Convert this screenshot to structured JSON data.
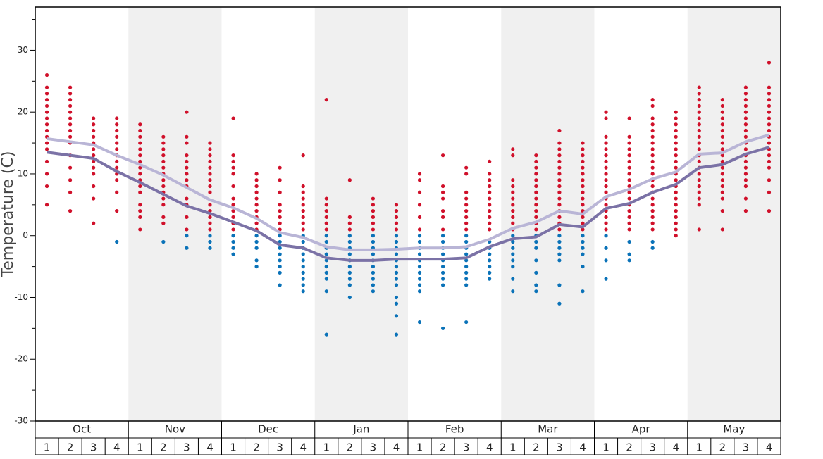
{
  "chart_data": {
    "type": "dot-strip",
    "y_label": "Temperature (C)",
    "ylim": [
      -30,
      37
    ],
    "yticks": [
      -30,
      -20,
      -10,
      0,
      10,
      20,
      30
    ],
    "yminorticks": [
      -25,
      -15,
      -5,
      5,
      15,
      25,
      35
    ],
    "months": [
      "Oct",
      "Nov",
      "Dec",
      "Jan",
      "Feb",
      "Mar",
      "Apr",
      "May"
    ],
    "shade_color": "#f0f0f0",
    "categories": [
      "1",
      "2",
      "3",
      "4",
      "1",
      "2",
      "3",
      "4",
      "1",
      "2",
      "3",
      "4",
      "1",
      "2",
      "3",
      "4",
      "1",
      "2",
      "3",
      "4",
      "1",
      "2",
      "3",
      "4",
      "1",
      "2",
      "3",
      "4",
      "1",
      "2",
      "3",
      "4"
    ],
    "series": [
      {
        "color": "#d0102a",
        "values": [
          [
            26,
            24,
            23,
            22,
            21,
            20,
            19,
            18,
            17,
            16,
            15,
            14,
            12,
            10,
            8,
            5
          ],
          [
            24,
            23,
            22,
            21,
            20,
            19,
            18,
            17,
            16,
            15,
            13,
            11,
            9,
            7,
            4
          ],
          [
            19,
            18,
            17,
            16,
            15,
            14,
            13,
            12,
            11,
            10,
            8,
            6,
            2
          ],
          [
            19,
            18,
            17,
            16,
            15,
            14,
            13,
            12,
            11,
            10,
            9,
            7,
            4
          ],
          [
            18,
            17,
            16,
            15,
            14,
            13,
            12,
            11,
            10,
            9,
            8,
            7,
            5,
            4,
            3,
            1
          ],
          [
            16,
            15,
            14,
            13,
            12,
            11,
            10,
            9,
            8,
            7,
            6,
            5,
            3,
            2
          ],
          [
            20,
            16,
            15,
            13,
            12,
            11,
            10,
            9,
            8,
            6,
            5,
            3,
            1
          ],
          [
            15,
            14,
            13,
            12,
            11,
            10,
            9,
            8,
            7,
            5,
            4,
            3,
            2,
            1
          ],
          [
            19,
            13,
            12,
            11,
            10,
            8,
            6,
            5,
            4,
            3,
            2,
            1
          ],
          [
            10,
            9,
            8,
            7,
            6,
            5,
            4,
            3,
            2,
            1
          ],
          [
            11,
            9,
            7,
            5,
            4,
            3,
            2,
            1
          ],
          [
            13,
            8,
            7,
            6,
            5,
            4,
            3,
            2,
            1
          ],
          [
            22,
            6,
            5,
            4,
            3,
            2,
            1
          ],
          [
            9,
            3,
            2,
            1
          ],
          [
            6,
            5,
            4,
            3,
            2,
            1
          ],
          [
            5,
            4,
            3,
            2,
            1
          ],
          [
            10,
            9,
            7,
            5,
            3,
            1
          ],
          [
            13,
            8,
            7,
            6,
            4,
            3,
            1
          ],
          [
            11,
            10,
            7,
            6,
            5,
            4,
            3,
            2,
            1
          ],
          [
            12,
            10,
            9,
            8,
            7,
            6,
            5,
            4,
            3,
            2,
            1
          ],
          [
            14,
            13,
            9,
            8,
            7,
            6,
            5,
            4,
            3,
            2,
            1
          ],
          [
            13,
            12,
            11,
            10,
            9,
            8,
            7,
            6,
            5,
            4,
            3,
            2,
            1
          ],
          [
            17,
            15,
            14,
            13,
            12,
            11,
            10,
            9,
            8,
            7,
            6,
            5,
            4,
            3,
            2,
            1
          ],
          [
            15,
            14,
            13,
            12,
            11,
            10,
            9,
            8,
            7,
            6,
            5,
            4,
            3,
            2,
            1
          ],
          [
            20,
            19,
            16,
            15,
            14,
            13,
            12,
            11,
            10,
            9,
            8,
            7,
            6,
            5,
            4,
            3,
            2,
            1
          ],
          [
            19,
            16,
            15,
            14,
            13,
            12,
            11,
            10,
            9,
            8,
            7,
            6,
            5,
            4,
            3,
            2,
            1
          ],
          [
            22,
            21,
            19,
            18,
            17,
            16,
            15,
            14,
            13,
            12,
            11,
            10,
            9,
            8,
            7,
            6,
            5,
            4,
            3,
            2,
            1
          ],
          [
            20,
            19,
            18,
            17,
            16,
            15,
            14,
            13,
            12,
            11,
            10,
            9,
            8,
            7,
            6,
            5,
            4,
            3,
            2,
            1,
            0
          ],
          [
            24,
            23,
            22,
            21,
            20,
            19,
            18,
            17,
            16,
            15,
            14,
            13,
            12,
            11,
            10,
            9,
            8,
            7,
            6,
            5,
            1
          ],
          [
            22,
            21,
            20,
            19,
            18,
            17,
            16,
            15,
            14,
            13,
            12,
            11,
            10,
            9,
            8,
            7,
            6,
            4,
            1
          ],
          [
            24,
            23,
            22,
            21,
            20,
            19,
            18,
            17,
            16,
            15,
            14,
            13,
            12,
            11,
            10,
            9,
            8,
            6,
            4
          ],
          [
            28,
            24,
            23,
            22,
            21,
            20,
            19,
            18,
            17,
            16,
            15,
            14,
            13,
            12,
            11,
            9,
            7,
            4
          ]
        ]
      },
      {
        "color": "#0a72b8",
        "values": [
          [],
          [],
          [],
          [
            -1
          ],
          [],
          [
            -1
          ],
          [
            0,
            -2
          ],
          [
            0,
            -1,
            -2
          ],
          [
            0,
            -1,
            -2,
            -3
          ],
          [
            0,
            -1,
            -2,
            -4,
            -5
          ],
          [
            0,
            -1,
            -2,
            -3,
            -4,
            -5,
            -6,
            -8
          ],
          [
            0,
            -1,
            -2,
            -3,
            -4,
            -5,
            -6,
            -7,
            -8,
            -9
          ],
          [
            0,
            -1,
            -2,
            -3,
            -4,
            -5,
            -6,
            -7,
            -9,
            -16
          ],
          [
            0,
            -1,
            -2,
            -3,
            -4,
            -5,
            -6,
            -7,
            -8,
            -10
          ],
          [
            0,
            -1,
            -2,
            -3,
            -4,
            -5,
            -6,
            -7,
            -8,
            -9
          ],
          [
            0,
            -1,
            -2,
            -3,
            -4,
            -5,
            -6,
            -7,
            -8,
            -10,
            -11,
            -13,
            -16
          ],
          [
            0,
            -1,
            -2,
            -3,
            -4,
            -5,
            -6,
            -7,
            -8,
            -9,
            -14
          ],
          [
            0,
            -1,
            -2,
            -3,
            -4,
            -5,
            -6,
            -7,
            -8,
            -15
          ],
          [
            0,
            -1,
            -2,
            -3,
            -4,
            -5,
            -6,
            -7,
            -8,
            -14
          ],
          [
            -1,
            -2,
            -3,
            -4,
            -5,
            -6,
            -7
          ],
          [
            0,
            -1,
            -2,
            -3,
            -4,
            -5,
            -7,
            -9
          ],
          [
            0,
            -1,
            -2,
            -4,
            -6,
            -8,
            -9
          ],
          [
            0,
            -1,
            -2,
            -3,
            -4,
            -8,
            -11
          ],
          [
            0,
            -1,
            -2,
            -3,
            -5,
            -9
          ],
          [
            0,
            -2,
            -4,
            -7
          ],
          [
            -1,
            -3,
            -4
          ],
          [
            -1,
            -2
          ],
          [],
          [],
          [],
          [],
          []
        ]
      }
    ],
    "lines": [
      {
        "color": "#b9b5d6",
        "values": [
          15.7,
          15.2,
          14.7,
          13,
          11.5,
          9.8,
          7.8,
          5.8,
          4.5,
          2.8,
          0.5,
          -0.3,
          -1.8,
          -2.3,
          -2.3,
          -2.2,
          -2.0,
          -2.0,
          -1.8,
          -0.6,
          1.2,
          2.2,
          4,
          3.5,
          6.3,
          7.5,
          9.2,
          10.3,
          13.2,
          13.4,
          15.2,
          16.3
        ]
      },
      {
        "color": "#7b72a6",
        "values": [
          13.5,
          13,
          12.5,
          10.4,
          8.6,
          6.7,
          4.8,
          3.6,
          2.2,
          0.8,
          -1.5,
          -2.0,
          -3.6,
          -4.0,
          -4.0,
          -3.8,
          -3.8,
          -3.8,
          -3.6,
          -1.8,
          -0.5,
          -0.2,
          1.8,
          1.4,
          4.4,
          5.2,
          7,
          8.3,
          11,
          11.5,
          13.2,
          14.3
        ]
      }
    ]
  }
}
